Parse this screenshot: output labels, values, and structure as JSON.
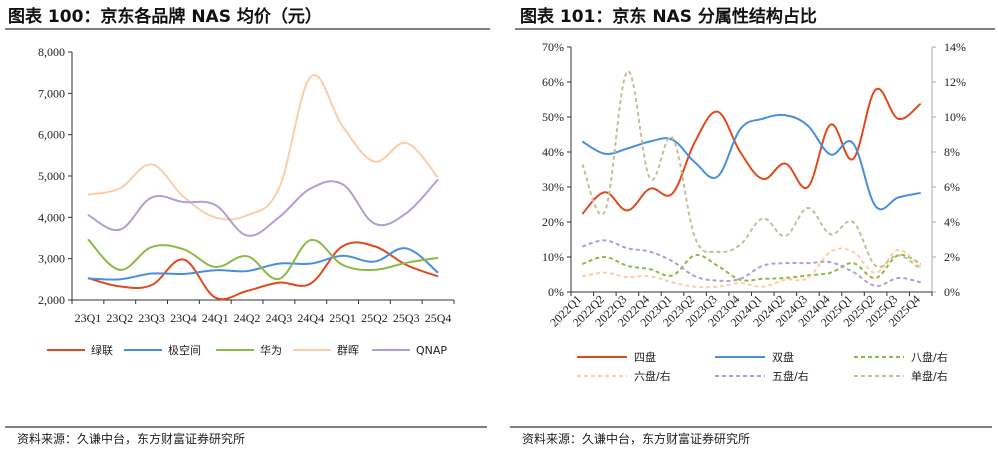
{
  "chart_data": [
    {
      "type": "line",
      "title": "图表 100：京东各品牌 NAS 均价（元）",
      "source": "资料来源：久谦中台，东方财富证券研究所",
      "categories": [
        "23Q1",
        "23Q2",
        "23Q3",
        "23Q4",
        "24Q1",
        "24Q2",
        "24Q3",
        "24Q4",
        "25Q1",
        "25Q2",
        "25Q3",
        "25Q4"
      ],
      "ylim": [
        2000,
        8000
      ],
      "yticks": [
        "2,000",
        "3,000",
        "4,000",
        "5,000",
        "6,000",
        "7,000",
        "8,000"
      ],
      "grid": false,
      "legend": "bottom",
      "series": [
        {
          "name": "绿联",
          "color": "#E04A1C",
          "values": [
            2530,
            2330,
            2360,
            2980,
            2060,
            2220,
            2420,
            2400,
            3300,
            3300,
            2850,
            2570
          ]
        },
        {
          "name": "极空间",
          "color": "#4A8FDA",
          "values": [
            2520,
            2500,
            2640,
            2630,
            2720,
            2700,
            2880,
            2880,
            3070,
            2930,
            3250,
            2660
          ]
        },
        {
          "name": "华为",
          "color": "#8DBA46",
          "values": [
            3470,
            2730,
            3280,
            3230,
            2800,
            3060,
            2510,
            3450,
            2850,
            2730,
            2900,
            3020
          ]
        },
        {
          "name": "群晖",
          "color": "#FCCDA8",
          "values": [
            4550,
            4700,
            5280,
            4500,
            4000,
            4050,
            4700,
            7400,
            6200,
            5350,
            5800,
            4960
          ]
        },
        {
          "name": "QNAP",
          "color": "#B39DD1",
          "values": [
            4060,
            3700,
            4480,
            4370,
            4300,
            3560,
            4000,
            4700,
            4800,
            3850,
            4100,
            4920
          ]
        }
      ]
    },
    {
      "type": "line",
      "title": "图表 101：京东 NAS 分属性结构占比",
      "source": "资料来源：久谦中台，东方财富证券研究所",
      "categories": [
        "2022Q1",
        "2022Q2",
        "2022Q3",
        "2022Q4",
        "2023Q1",
        "2023Q2",
        "2023Q3",
        "2023Q4",
        "2024Q1",
        "2024Q2",
        "2024Q3",
        "2024Q4",
        "2025Q1",
        "2025Q2",
        "2025Q3",
        "2025Q4"
      ],
      "ylim": [
        0,
        70
      ],
      "y2lim": [
        0,
        14
      ],
      "yticks": [
        "0%",
        "10%",
        "20%",
        "30%",
        "40%",
        "50%",
        "60%",
        "70%"
      ],
      "y2ticks": [
        "0%",
        "2%",
        "4%",
        "6%",
        "8%",
        "10%",
        "12%",
        "14%"
      ],
      "grid": false,
      "legend": "bottom",
      "series": [
        {
          "name": "四盘",
          "axis": "left",
          "dashed": false,
          "color": "#E04A1C",
          "values": [
            22.3,
            28.5,
            23.3,
            29.5,
            28.2,
            43,
            51.5,
            40,
            32.3,
            36.7,
            30,
            47.8,
            38,
            57.8,
            49.5,
            53.8
          ]
        },
        {
          "name": "双盘",
          "axis": "left",
          "dashed": false,
          "color": "#4A8FDA",
          "values": [
            43,
            39.5,
            41,
            43,
            43.5,
            37,
            33,
            46.5,
            49.5,
            50.5,
            47.5,
            39.3,
            42.5,
            24.5,
            27,
            28.3
          ]
        },
        {
          "name": "八盘/右",
          "axis": "right",
          "dashed": true,
          "color": "#8DBA46",
          "values": [
            1.6,
            2.0,
            1.5,
            1.3,
            0.95,
            2.1,
            1.5,
            0.7,
            0.75,
            0.8,
            0.95,
            1.1,
            1.65,
            0.8,
            2.1,
            1.6
          ]
        },
        {
          "name": "六盘/右",
          "axis": "right",
          "dashed": true,
          "color": "#FCCDA8",
          "values": [
            0.9,
            1.1,
            0.85,
            0.9,
            0.55,
            0.3,
            0.3,
            0.5,
            0.3,
            0.7,
            0.8,
            2.3,
            2.3,
            1.1,
            2.4,
            1.4
          ]
        },
        {
          "name": "五盘/右",
          "axis": "right",
          "dashed": true,
          "color": "#B39DD1",
          "values": [
            2.6,
            2.95,
            2.5,
            2.3,
            1.75,
            0.9,
            0.65,
            0.75,
            1.5,
            1.65,
            1.65,
            1.7,
            1.15,
            0.35,
            0.8,
            0.55
          ]
        },
        {
          "name": "单盘/右",
          "axis": "right",
          "dashed": true,
          "color": "#C9BC98",
          "values": [
            7.3,
            4.6,
            12.6,
            6.5,
            8.8,
            3.1,
            2.3,
            2.7,
            4.2,
            3.2,
            4.8,
            3.3,
            4.0,
            1.5,
            2.1,
            1.3
          ]
        }
      ]
    }
  ]
}
